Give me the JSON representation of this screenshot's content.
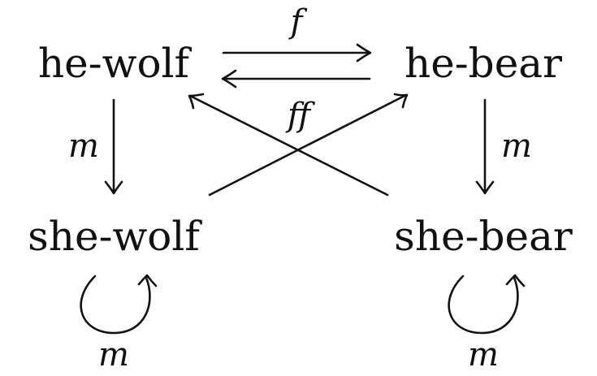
{
  "nodes": {
    "he_wolf": "he-wolf",
    "he_bear": "he-bear",
    "she_wolf": "she-wolf",
    "she_bear": "she-bear"
  },
  "edges": {
    "top_forward": "f",
    "cross": "ff",
    "left_down": "m",
    "right_down": "m",
    "she_wolf_loop": "m",
    "she_bear_loop": "m"
  }
}
